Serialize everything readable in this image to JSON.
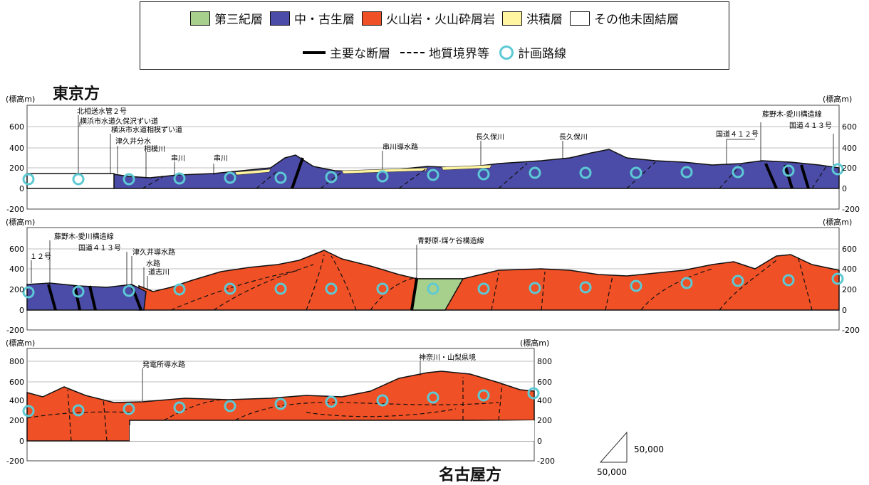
{
  "legend": {
    "items": [
      {
        "label": "第三紀層",
        "color": "#a8d08d"
      },
      {
        "label": "中・古生層",
        "color": "#4b4ba8"
      },
      {
        "label": "火山岩・火山砕屑岩",
        "color": "#ef5025"
      },
      {
        "label": "洪積層",
        "color": "#fff5a0"
      },
      {
        "label": "その他未固結層",
        "color": "#ffffff"
      }
    ],
    "fault_label": "主要な断層",
    "boundary_label": "地質境界等",
    "route_label": "計画路線",
    "route_color": "#5cc9d4"
  },
  "directions": {
    "top": "東京方",
    "bottom": "名古屋方"
  },
  "axis_unit": "(標高m)",
  "panels": [
    {
      "ticks": [
        "600",
        "400",
        "200",
        "0",
        "-200"
      ],
      "labels": [
        "北相送水管２号",
        "横浜市水道久保沢ずい道",
        "横浜市水道相模ずい道",
        "津久井分水",
        "相模川",
        "串川",
        "串川",
        "串川導水路",
        "長久保川",
        "長久保川",
        "国道４１２号",
        "藤野木-愛川構造線",
        "国道４１３号"
      ]
    },
    {
      "ticks": [
        "600",
        "400",
        "200",
        "0",
        "-200"
      ],
      "labels": [
        "藤野木-愛川構造線",
        "１２号",
        "国道４１３号",
        "津久井導水路",
        "水路",
        "道志川",
        "青野原-煤ケ谷構造線"
      ]
    },
    {
      "ticks": [
        "800",
        "600",
        "400",
        "200",
        "0",
        "-200"
      ],
      "labels": [
        "発電所導水路",
        "神奈川・山梨県境"
      ]
    }
  ],
  "scale": {
    "vertical": "50,000",
    "horizontal": "50,000"
  }
}
